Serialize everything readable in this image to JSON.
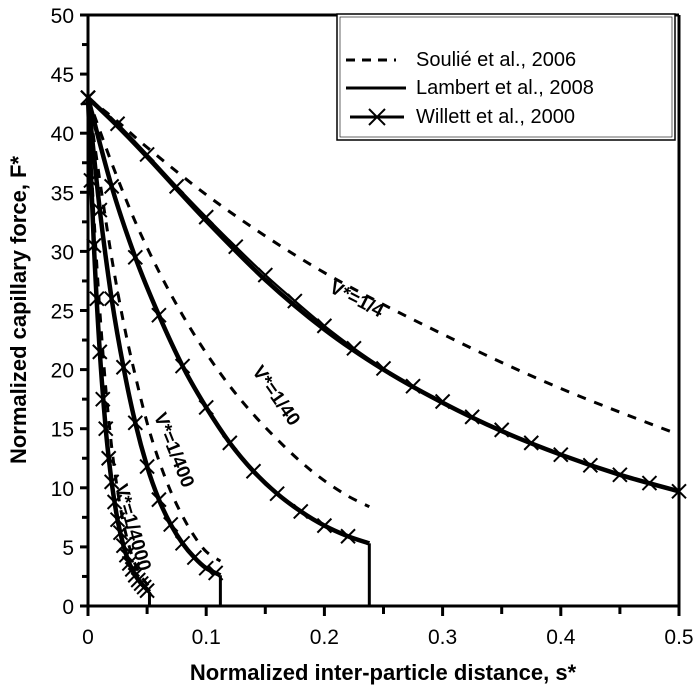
{
  "chart_data": {
    "type": "line",
    "title": "",
    "xlabel": "Normalized inter-particle distance, s*",
    "ylabel": "Normalized capillary force, F*",
    "xlim": [
      0,
      0.5
    ],
    "ylim": [
      0,
      50
    ],
    "xticks": [
      0,
      0.1,
      0.2,
      0.3,
      0.4,
      0.5
    ],
    "xtick_labels": [
      "0",
      "0.1",
      "0.2",
      "0.3",
      "0.4",
      "0.5"
    ],
    "yticks": [
      0,
      5,
      10,
      15,
      20,
      25,
      30,
      35,
      40,
      45,
      50
    ],
    "ytick_labels": [
      "0",
      "5",
      "10",
      "15",
      "20",
      "25",
      "30",
      "35",
      "40",
      "45",
      "50"
    ],
    "grid": false,
    "legend_position": "upper right",
    "legend": [
      {
        "label": "Soulié et al., 2006",
        "style": "dashed"
      },
      {
        "label": "Lambert et al., 2008",
        "style": "solid"
      },
      {
        "label": "Willett et al., 2000",
        "style": "solid-x-markers"
      }
    ],
    "annotations": [
      {
        "text": "V*=1/4",
        "x": 0.225,
        "y": 25.5,
        "rotation": 27
      },
      {
        "text": "V*=1/40",
        "x": 0.155,
        "y": 17.5,
        "rotation": 55
      },
      {
        "text": "V*=1/400",
        "x": 0.068,
        "y": 13.0,
        "rotation": 68
      },
      {
        "text": "V*=1/4000",
        "x": 0.033,
        "y": 6.5,
        "rotation": 74
      }
    ],
    "series": [
      {
        "name": "Soulié et al., 2006",
        "volume": "V*=1/4",
        "style": "dashed",
        "x": [
          0,
          0.025,
          0.05,
          0.1,
          0.15,
          0.2,
          0.25,
          0.3,
          0.35,
          0.4,
          0.45,
          0.5
        ],
        "y": [
          43,
          41,
          38.8,
          34.8,
          31.3,
          28.2,
          25.5,
          23.0,
          20.6,
          18.4,
          16.4,
          14.5
        ]
      },
      {
        "name": "Lambert et al., 2008",
        "volume": "V*=1/4",
        "style": "solid",
        "x": [
          0,
          0.025,
          0.05,
          0.1,
          0.15,
          0.2,
          0.25,
          0.3,
          0.35,
          0.4,
          0.45,
          0.5
        ],
        "y": [
          43,
          40.6,
          38.0,
          32.6,
          27.6,
          23.4,
          20.0,
          17.2,
          14.8,
          12.8,
          11.1,
          9.7
        ]
      },
      {
        "name": "Willett et al., 2000",
        "volume": "V*=1/4",
        "style": "solid-x",
        "x": [
          0,
          0.025,
          0.05,
          0.075,
          0.1,
          0.125,
          0.15,
          0.175,
          0.2,
          0.225,
          0.25,
          0.275,
          0.3,
          0.325,
          0.35,
          0.375,
          0.4,
          0.425,
          0.45,
          0.475,
          0.5
        ],
        "y": [
          43,
          40.8,
          38.2,
          35.5,
          32.9,
          30.4,
          28.0,
          25.8,
          23.7,
          21.8,
          20.1,
          18.6,
          17.3,
          16.0,
          14.9,
          13.8,
          12.8,
          11.9,
          11.1,
          10.4,
          9.7
        ]
      },
      {
        "name": "Soulié et al., 2006",
        "volume": "V*=1/40",
        "style": "dashed",
        "x": [
          0,
          0.02,
          0.04,
          0.06,
          0.08,
          0.1,
          0.12,
          0.14,
          0.16,
          0.18,
          0.2,
          0.22,
          0.238
        ],
        "y": [
          43,
          37.5,
          32.5,
          28.3,
          24.6,
          21.4,
          18.6,
          16.2,
          14.1,
          12.2,
          10.6,
          9.3,
          8.4
        ]
      },
      {
        "name": "Lambert et al., 2008",
        "volume": "V*=1/40",
        "style": "solid",
        "x": [
          0,
          0.02,
          0.04,
          0.06,
          0.08,
          0.1,
          0.12,
          0.14,
          0.16,
          0.18,
          0.2,
          0.22,
          0.238
        ],
        "y": [
          43,
          35.5,
          29.5,
          24.6,
          20.3,
          16.8,
          13.8,
          11.4,
          9.5,
          8.0,
          6.8,
          5.9,
          5.3
        ]
      },
      {
        "name": "Willett et al., 2000",
        "volume": "V*=1/40",
        "style": "solid-x",
        "x": [
          0,
          0.02,
          0.04,
          0.06,
          0.08,
          0.1,
          0.12,
          0.14,
          0.16,
          0.18,
          0.2,
          0.22
        ],
        "y": [
          43,
          35.5,
          29.5,
          24.6,
          20.3,
          16.8,
          13.8,
          11.4,
          9.5,
          8.0,
          6.8,
          5.9
        ]
      },
      {
        "name": "Soulié et al., 2006",
        "volume": "V*=1/400",
        "style": "dashed",
        "x": [
          0,
          0.01,
          0.02,
          0.03,
          0.04,
          0.05,
          0.06,
          0.07,
          0.08,
          0.09,
          0.1,
          0.112
        ],
        "y": [
          43,
          36,
          29.5,
          24,
          19.5,
          15.5,
          12.3,
          9.7,
          7.6,
          5.9,
          4.6,
          3.8
        ]
      },
      {
        "name": "Lambert et al., 2008",
        "volume": "V*=1/400",
        "style": "solid",
        "x": [
          0,
          0.01,
          0.02,
          0.03,
          0.04,
          0.05,
          0.06,
          0.07,
          0.08,
          0.09,
          0.1,
          0.112
        ],
        "y": [
          43,
          33.5,
          26,
          20.2,
          15.5,
          11.8,
          9.0,
          6.9,
          5.3,
          4.1,
          3.2,
          2.6
        ]
      },
      {
        "name": "Willett et al., 2000",
        "volume": "V*=1/400",
        "style": "solid-x",
        "x": [
          0,
          0.01,
          0.02,
          0.03,
          0.04,
          0.05,
          0.06,
          0.07,
          0.08,
          0.09,
          0.1,
          0.108
        ],
        "y": [
          43,
          33.5,
          26,
          20.2,
          15.5,
          11.8,
          9.0,
          6.9,
          5.3,
          4.1,
          3.2,
          2.8
        ]
      },
      {
        "name": "Soulié et al., 2006",
        "volume": "V*=1/4000",
        "style": "dashed",
        "x": [
          0,
          0.005,
          0.01,
          0.015,
          0.02,
          0.025,
          0.03,
          0.035,
          0.04,
          0.045,
          0.052
        ],
        "y": [
          43,
          33,
          25,
          18.5,
          13.5,
          9.8,
          7.0,
          5.0,
          3.5,
          2.5,
          1.6
        ]
      },
      {
        "name": "Lambert et al., 2008",
        "volume": "V*=1/4000",
        "style": "solid",
        "x": [
          0,
          0.005,
          0.01,
          0.015,
          0.02,
          0.025,
          0.03,
          0.035,
          0.04,
          0.045,
          0.052
        ],
        "y": [
          43,
          30.5,
          21.5,
          15,
          10.5,
          7.3,
          5.1,
          3.6,
          2.6,
          1.9,
          1.2
        ]
      },
      {
        "name": "Willett et al., 2000",
        "volume": "V*=1/4000",
        "style": "solid-x",
        "x": [
          0,
          0.0025,
          0.005,
          0.0075,
          0.01,
          0.0125,
          0.015,
          0.0175,
          0.02,
          0.0225,
          0.025,
          0.0275,
          0.03,
          0.0325,
          0.035,
          0.0375,
          0.04,
          0.0425,
          0.045,
          0.0475,
          0.05
        ],
        "y": [
          43,
          36,
          30.5,
          26.0,
          21.5,
          17.5,
          15,
          12.5,
          10.5,
          8.8,
          7.3,
          6.2,
          5.1,
          4.3,
          3.6,
          3.1,
          2.6,
          2.2,
          1.9,
          1.6,
          1.3
        ]
      }
    ],
    "cutoff_lines": [
      {
        "x": 0.052,
        "y_top": 1.2
      },
      {
        "x": 0.112,
        "y_top": 2.6
      },
      {
        "x": 0.238,
        "y_top": 5.3
      }
    ]
  }
}
